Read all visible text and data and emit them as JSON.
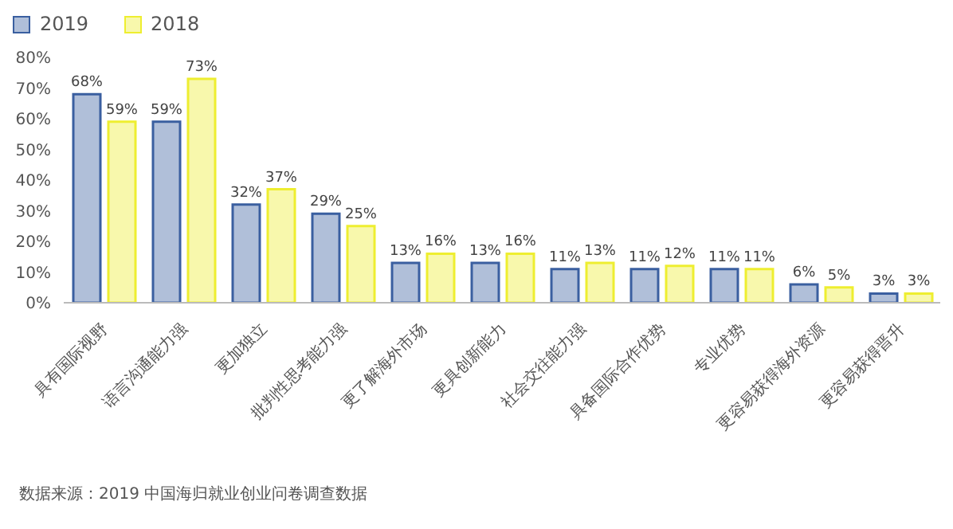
{
  "chart_data": {
    "type": "bar",
    "categories": [
      "具有国际视野",
      "语言沟通能力强",
      "更加独立",
      "批判性思考能力强",
      "更了解海外市场",
      "更具创新能力",
      "社会交往能力强",
      "具备国际合作优势",
      "专业优势",
      "更容易获得海外资源",
      "更容易获得晋升"
    ],
    "series": [
      {
        "name": "2019",
        "color": "#3a5fa0",
        "values": [
          68,
          59,
          32,
          29,
          13,
          13,
          11,
          11,
          11,
          6,
          3
        ],
        "value_labels": [
          "68%",
          "59%",
          "32%",
          "29%",
          "13%",
          "13%",
          "11%",
          "11%",
          "11%",
          "6%",
          "3%"
        ]
      },
      {
        "name": "2018",
        "color": "#eeee30",
        "values": [
          59,
          73,
          37,
          25,
          16,
          16,
          13,
          12,
          11,
          5,
          3
        ],
        "value_labels": [
          "59%",
          "73%",
          "37%",
          "25%",
          "16%",
          "16%",
          "13%",
          "12%",
          "11%",
          "5%",
          "3%"
        ]
      }
    ],
    "ylim": [
      0,
      80
    ],
    "yticks": [
      {
        "value": 0,
        "label": "0%"
      },
      {
        "value": 10,
        "label": "10%"
      },
      {
        "value": 20,
        "label": "20%"
      },
      {
        "value": 30,
        "label": "30%"
      },
      {
        "value": 40,
        "label": "40%"
      },
      {
        "value": 50,
        "label": "50%"
      },
      {
        "value": 60,
        "label": "60%"
      },
      {
        "value": 70,
        "label": "70%"
      },
      {
        "value": 80,
        "label": "80%"
      }
    ],
    "grid": false,
    "legend": "top left",
    "annotations": [
      "数据来源：2019 中国海归就业创业问卷调查数据"
    ]
  }
}
